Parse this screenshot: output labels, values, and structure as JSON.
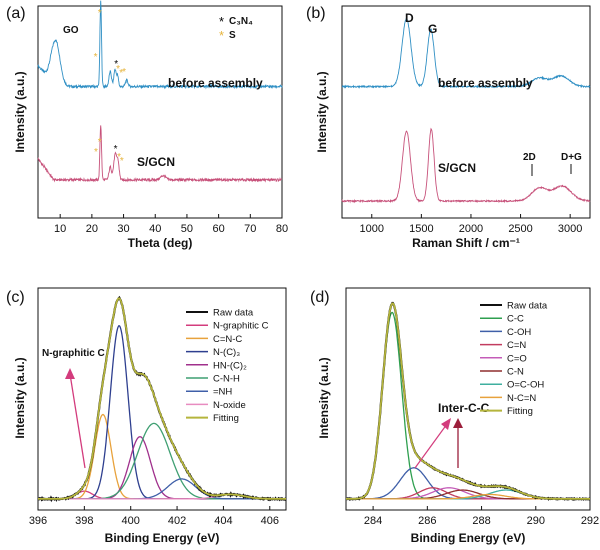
{
  "chart_data": [
    {
      "id": "a",
      "type": "line",
      "panel_label": "(a)",
      "xlabel": "Theta (deg)",
      "ylabel": "Intensity (a.u.)",
      "xlim": [
        3,
        80
      ],
      "xticks": [
        "10",
        "20",
        "30",
        "40",
        "50",
        "60",
        "70",
        "80"
      ],
      "legend": {
        "position": "top-right",
        "entries": [
          {
            "marker": "*",
            "label": "C₃N₄",
            "color": "#000000"
          },
          {
            "marker": "*",
            "label": "S",
            "color": "#e6b43c"
          }
        ]
      },
      "annotations": [
        {
          "text": "GO",
          "x": 8.5
        },
        {
          "text": "before assembly",
          "x": 53
        },
        {
          "text": "S/GCN",
          "x": 36
        }
      ],
      "series": [
        {
          "name": "before assembly",
          "color": "#2f8fc4",
          "baseline": 0.62,
          "peaks": [
            [
              8.5,
              0.22,
              1.4
            ],
            [
              22.8,
              0.4,
              0.25
            ],
            [
              25.8,
              0.07,
              0.4
            ],
            [
              27.3,
              0.08,
              0.35
            ],
            [
              28.1,
              0.05,
              0.3
            ],
            [
              31.0,
              0.03,
              0.4
            ]
          ]
        },
        {
          "name": "S/GCN",
          "color": "#c7517a",
          "baseline": 0.18,
          "peaks": [
            [
              22.8,
              0.26,
              0.25
            ],
            [
              25.8,
              0.06,
              0.4
            ],
            [
              27.4,
              0.12,
              0.5
            ],
            [
              28.3,
              0.07,
              0.35
            ],
            [
              42.5,
              0.02,
              0.8
            ]
          ]
        }
      ]
    },
    {
      "id": "b",
      "type": "line",
      "panel_label": "(b)",
      "xlabel": "Raman Shift / cm⁻¹",
      "ylabel": "Intensity (a.u.)",
      "xlim": [
        700,
        3200
      ],
      "xticks": [
        "1000",
        "1500",
        "2000",
        "2500",
        "3000"
      ],
      "annotations": [
        {
          "text": "D",
          "x": 1350
        },
        {
          "text": "G",
          "x": 1590
        },
        {
          "text": "before assembly",
          "x": 2200
        },
        {
          "text": "S/GCN",
          "x": 1900
        },
        {
          "text": "2D",
          "x": 2690
        },
        {
          "text": "D+G",
          "x": 2910
        }
      ],
      "series": [
        {
          "name": "before assembly",
          "color": "#2f8fc4",
          "baseline": 0.62,
          "peaks": [
            [
              1350,
              0.32,
              45
            ],
            [
              1595,
              0.27,
              35
            ],
            [
              2690,
              0.04,
              80
            ],
            [
              2910,
              0.05,
              80
            ]
          ]
        },
        {
          "name": "S/GCN",
          "color": "#c7517a",
          "baseline": 0.08,
          "peaks": [
            [
              1350,
              0.33,
              40
            ],
            [
              1600,
              0.34,
              28
            ],
            [
              2690,
              0.06,
              80
            ],
            [
              2920,
              0.07,
              90
            ]
          ]
        }
      ]
    },
    {
      "id": "c",
      "type": "line",
      "panel_label": "(c)",
      "xlabel": "Binding Energy (eV)",
      "ylabel": "Intensity (a.u.)",
      "xlim": [
        396,
        406.7
      ],
      "xticks": [
        "396",
        "398",
        "400",
        "402",
        "404",
        "406"
      ],
      "annotations": [
        {
          "text": "N-graphitic C",
          "x": 397.6
        }
      ],
      "legend": {
        "position": "top-right"
      },
      "series": [
        {
          "name": "Raw data",
          "color": "#111111",
          "width": 2.2
        },
        {
          "name": "N-graphitic C",
          "color": "#d33c7d",
          "peak": [
            398.0,
            0.035,
            0.35
          ]
        },
        {
          "name": "C=N-C",
          "color": "#e8a23c",
          "peak": [
            398.8,
            0.38,
            0.35
          ]
        },
        {
          "name": "N-(C)₃",
          "color": "#2e3f8f",
          "peak": [
            399.5,
            0.78,
            0.38
          ]
        },
        {
          "name": "HN-(C)₂",
          "color": "#a0308c",
          "peak": [
            400.4,
            0.28,
            0.45
          ]
        },
        {
          "name": "C-N-H",
          "color": "#3f9f72",
          "peak": [
            401.0,
            0.34,
            0.7
          ]
        },
        {
          "name": "=NH",
          "color": "#3f5fa8",
          "peak": [
            402.2,
            0.09,
            0.6
          ]
        },
        {
          "name": "N-oxide",
          "color": "#e88cc0",
          "peak": [
            404.3,
            0.02,
            0.6
          ]
        },
        {
          "name": "Fitting",
          "color": "#b5b53c",
          "width": 1.8
        }
      ]
    },
    {
      "id": "d",
      "type": "line",
      "panel_label": "(d)",
      "xlabel": "Binding Energy (eV)",
      "ylabel": "Intensity (a.u.)",
      "xlim": [
        283,
        292
      ],
      "xticks": [
        "284",
        "286",
        "288",
        "290",
        "292"
      ],
      "annotations": [
        {
          "text": "Inter-C-C",
          "x": 287.2
        }
      ],
      "legend": {
        "position": "top-right"
      },
      "series": [
        {
          "name": "Raw data",
          "color": "#111111",
          "width": 2.2
        },
        {
          "name": "C-C",
          "color": "#2e9f4f",
          "peak": [
            284.7,
            0.84,
            0.35
          ]
        },
        {
          "name": "C-OH",
          "color": "#3f5fa8",
          "peak": [
            285.5,
            0.14,
            0.5
          ]
        },
        {
          "name": "C=N",
          "color": "#c23c5f",
          "peak": [
            286.2,
            0.05,
            0.5
          ]
        },
        {
          "name": "C=O",
          "color": "#c45cb8",
          "peak": [
            286.8,
            0.05,
            0.6
          ]
        },
        {
          "name": "C-N",
          "color": "#8f2f2f",
          "peak": [
            287.3,
            0.04,
            0.6
          ]
        },
        {
          "name": "O=C-OH",
          "color": "#3faf9f",
          "peak": [
            288.9,
            0.04,
            0.6
          ]
        },
        {
          "name": "N-C=N",
          "color": "#e8a23c",
          "peak": [
            288.3,
            0.02,
            0.6
          ]
        },
        {
          "name": "Fitting",
          "color": "#b5b53c",
          "width": 1.8
        }
      ]
    }
  ]
}
